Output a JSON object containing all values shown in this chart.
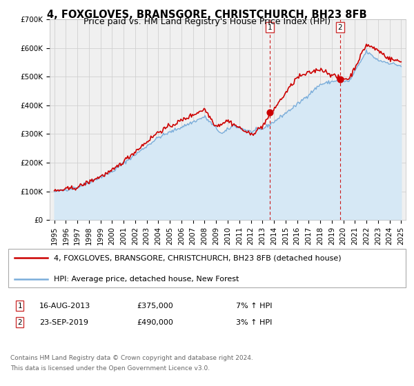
{
  "title": "4, FOXGLOVES, BRANSGORE, CHRISTCHURCH, BH23 8FB",
  "subtitle": "Price paid vs. HM Land Registry's House Price Index (HPI)",
  "ylim": [
    0,
    700000
  ],
  "yticks": [
    0,
    100000,
    200000,
    300000,
    400000,
    500000,
    600000,
    700000
  ],
  "ytick_labels": [
    "£0",
    "£100K",
    "£200K",
    "£300K",
    "£400K",
    "£500K",
    "£600K",
    "£700K"
  ],
  "xlim_start": 1994.6,
  "xlim_end": 2025.4,
  "xticks": [
    1995,
    1996,
    1997,
    1998,
    1999,
    2000,
    2001,
    2002,
    2003,
    2004,
    2005,
    2006,
    2007,
    2008,
    2009,
    2010,
    2011,
    2012,
    2013,
    2014,
    2015,
    2016,
    2017,
    2018,
    2019,
    2020,
    2021,
    2022,
    2023,
    2024,
    2025
  ],
  "red_line_color": "#cc0000",
  "blue_line_color": "#7aadda",
  "blue_fill_color": "#d6e8f5",
  "grid_color": "#d0d0d0",
  "background_color": "#ffffff",
  "plot_bg_color": "#f0f0f0",
  "marker1_x": 2013.62,
  "marker1_y": 375000,
  "marker2_x": 2019.73,
  "marker2_y": 490000,
  "vline1_x": 2013.62,
  "vline2_x": 2019.73,
  "legend_red_label": "4, FOXGLOVES, BRANSGORE, CHRISTCHURCH, BH23 8FB (detached house)",
  "legend_blue_label": "HPI: Average price, detached house, New Forest",
  "ann1_num": "1",
  "ann2_num": "2",
  "ann1_date": "16-AUG-2013",
  "ann1_price": "£375,000",
  "ann1_hpi": "7% ↑ HPI",
  "ann2_date": "23-SEP-2019",
  "ann2_price": "£490,000",
  "ann2_hpi": "3% ↑ HPI",
  "footer1": "Contains HM Land Registry data © Crown copyright and database right 2024.",
  "footer2": "This data is licensed under the Open Government Licence v3.0.",
  "title_fontsize": 10.5,
  "subtitle_fontsize": 9,
  "tick_fontsize": 7.5,
  "legend_fontsize": 8,
  "ann_fontsize": 8,
  "footer_fontsize": 6.5
}
